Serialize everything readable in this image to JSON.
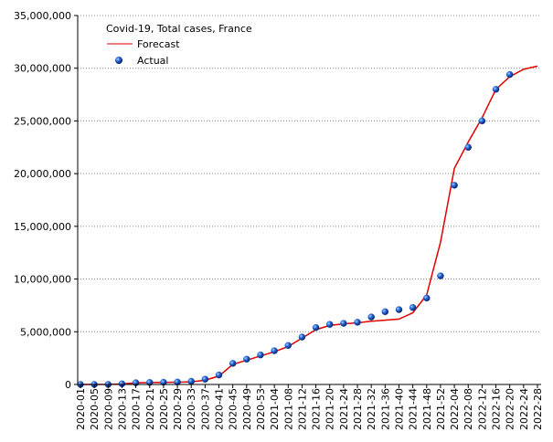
{
  "chart_data": {
    "type": "line",
    "title": "Covid-19, Total cases, France",
    "categories": [
      "2020-01",
      "2020-05",
      "2020-09",
      "2020-13",
      "2020-17",
      "2020-21",
      "2020-25",
      "2020-29",
      "2020-33",
      "2020-37",
      "2020-41",
      "2020-45",
      "2020-49",
      "2020-53",
      "2021-04",
      "2021-08",
      "2021-12",
      "2021-16",
      "2021-20",
      "2021-24",
      "2021-28",
      "2021-32",
      "2021-36",
      "2021-40",
      "2021-44",
      "2021-48",
      "2021-52",
      "2022-04",
      "2022-08",
      "2022-12",
      "2022-16",
      "2022-20",
      "2022-24",
      "2022-28"
    ],
    "series": [
      {
        "name": "Forecast",
        "color": "#e00000",
        "values": [
          0,
          0,
          10000,
          50000,
          150000,
          180000,
          200000,
          220000,
          250000,
          400000,
          800000,
          1900000,
          2300000,
          2700000,
          3100000,
          3600000,
          4400000,
          5200000,
          5600000,
          5750000,
          5850000,
          6000000,
          6100000,
          6200000,
          6800000,
          8500000,
          13500000,
          20500000,
          23000000,
          25300000,
          28000000,
          29200000,
          29900000,
          30200000
        ]
      },
      {
        "name": "Actual",
        "color": "#1f5fd0",
        "values": [
          100,
          200,
          5000,
          60000,
          160000,
          190000,
          210000,
          230000,
          300000,
          500000,
          900000,
          2000000,
          2400000,
          2800000,
          3200000,
          3700000,
          4500000,
          5400000,
          5700000,
          5800000,
          5900000,
          6400000,
          6900000,
          7100000,
          7300000,
          8200000,
          10300000,
          18900000,
          22500000,
          25000000,
          28000000,
          29400000,
          null,
          null
        ]
      }
    ],
    "ylim": [
      0,
      35000000
    ],
    "yticks": [
      {
        "value": 0,
        "label": "0"
      },
      {
        "value": 5000000,
        "label": "5,000,000"
      },
      {
        "value": 10000000,
        "label": "10,000,000"
      },
      {
        "value": 15000000,
        "label": "15,000,000"
      },
      {
        "value": 20000000,
        "label": "20,000,000"
      },
      {
        "value": 25000000,
        "label": "25,000,000"
      },
      {
        "value": 30000000,
        "label": "30,000,000"
      },
      {
        "value": 35000000,
        "label": "35,000,000"
      }
    ],
    "grid": true
  }
}
